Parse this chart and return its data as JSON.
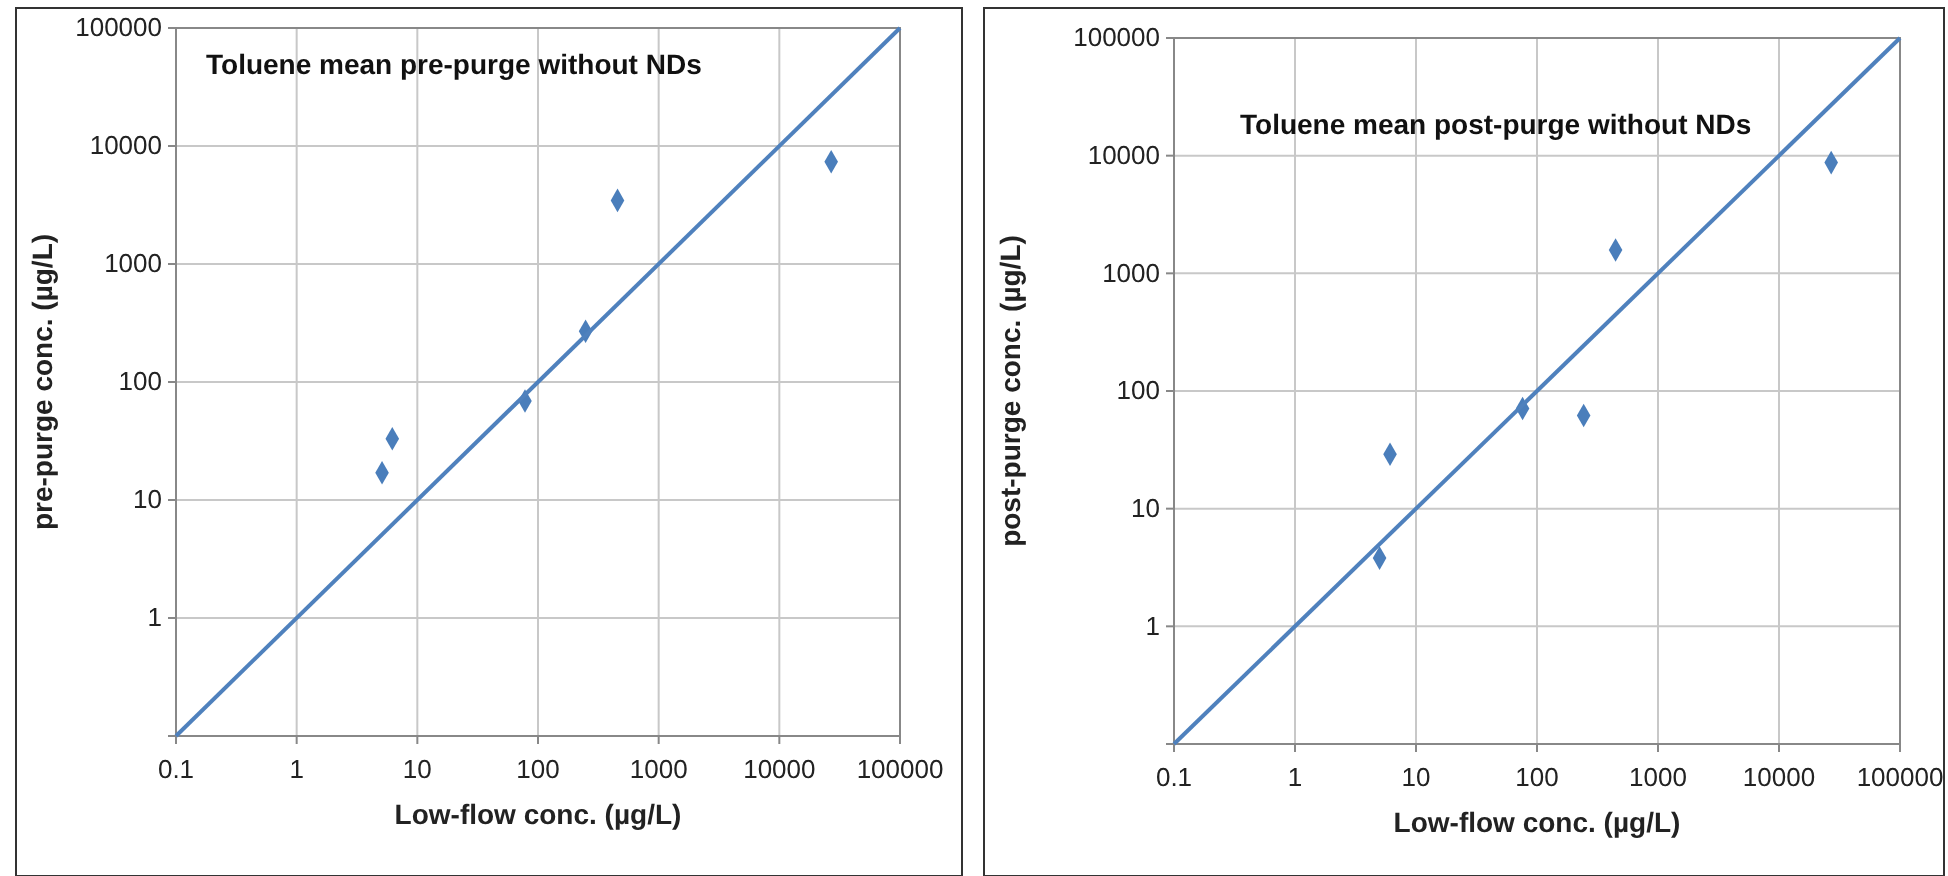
{
  "chart_data": [
    {
      "type": "scatter",
      "title": "Toluene mean pre-purge without NDs",
      "xlabel": "Low-flow conc. (µg/L)",
      "ylabel": "pre-purge conc. (µg/L)",
      "log": "xy",
      "grid": true,
      "marker": "diamond",
      "xlim": [
        0.1,
        100000
      ],
      "ylim": [
        0.1,
        100000
      ],
      "xticks": [
        0.1,
        1,
        10,
        100,
        1000,
        10000,
        100000
      ],
      "yticks": [
        {
          "value": 0.1,
          "label": null
        },
        1,
        10,
        100,
        1000,
        10000,
        100000
      ],
      "series": [
        {
          "type": "scatter",
          "color": "#4a7ebb",
          "x": [
            5.1,
            6.2,
            78,
            248,
            456,
            26900
          ],
          "values": [
            17,
            33,
            69,
            269,
            3460,
            7360
          ]
        },
        {
          "type": "line",
          "color": "#4f81bd",
          "marker": "none",
          "line_style": "solid",
          "x": [
            0.1,
            100000
          ],
          "values": [
            0.1,
            100000
          ]
        }
      ]
    },
    {
      "type": "scatter",
      "title": "Toluene mean post-purge without NDs",
      "xlabel": "Low-flow conc. (µg/L)",
      "ylabel": "post-purge conc. (µg/L)",
      "log": "xy",
      "grid": true,
      "marker": "diamond",
      "xlim": [
        0.1,
        100000
      ],
      "ylim": [
        0.1,
        100000
      ],
      "xticks": [
        0.1,
        1,
        10,
        100,
        1000,
        10000,
        100000
      ],
      "yticks": [
        {
          "value": 0.1,
          "label": null
        },
        1,
        10,
        100,
        1000,
        10000,
        100000
      ],
      "series": [
        {
          "type": "scatter",
          "color": "#4a7ebb",
          "x": [
            5.0,
            6.1,
            76,
            243,
            446,
            27000
          ],
          "values": [
            3.8,
            29,
            71,
            62,
            1580,
            8730
          ]
        },
        {
          "type": "line",
          "color": "#4f81bd",
          "marker": "none",
          "line_style": "solid",
          "x": [
            0.1,
            100000
          ],
          "values": [
            0.1,
            100000
          ]
        }
      ]
    }
  ]
}
